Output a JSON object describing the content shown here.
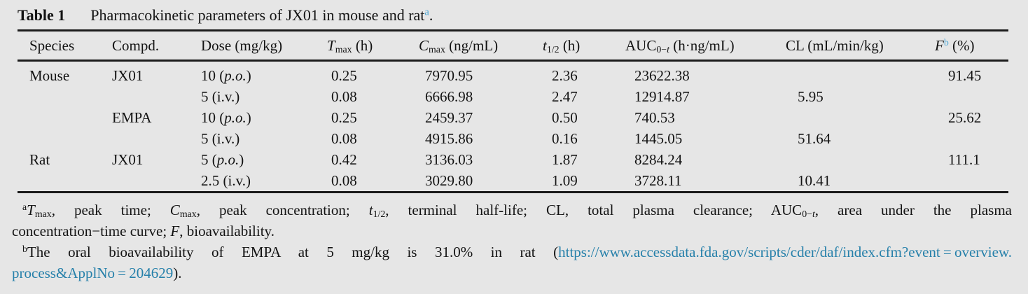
{
  "colors": {
    "background": "#e6e6e6",
    "text": "#131313",
    "rule": "#1b1b1b",
    "superscript_accent": "#4fa8d5",
    "link": "#2680aa"
  },
  "caption": {
    "label": "Table 1",
    "parts": [
      {
        "t": "Pharmacokinetic parameters of JX01 in mouse and rat"
      },
      {
        "t": "a",
        "sup": true,
        "accent": true
      },
      {
        "t": "."
      }
    ]
  },
  "columns": [
    {
      "key": "species",
      "parts": [
        {
          "t": "Species"
        }
      ]
    },
    {
      "key": "compound",
      "parts": [
        {
          "t": "Compd."
        }
      ]
    },
    {
      "key": "dose",
      "parts": [
        {
          "t": "Dose (mg/kg)"
        }
      ]
    },
    {
      "key": "tmax",
      "parts": [
        {
          "t": "T",
          "i": true
        },
        {
          "t": "max",
          "sub": true
        },
        {
          "t": " (h)"
        }
      ]
    },
    {
      "key": "cmax",
      "parts": [
        {
          "t": "C",
          "i": true
        },
        {
          "t": "max",
          "sub": true
        },
        {
          "t": " (ng/mL)"
        }
      ]
    },
    {
      "key": "thalf",
      "parts": [
        {
          "t": "t",
          "i": true
        },
        {
          "t": "1/2",
          "sub": true
        },
        {
          "t": " (h)"
        }
      ]
    },
    {
      "key": "auc",
      "parts": [
        {
          "t": "AUC"
        },
        {
          "t": "0−",
          "sub": true
        },
        {
          "t": "t",
          "sub": true,
          "i": true
        },
        {
          "t": " (h·ng/mL)"
        }
      ]
    },
    {
      "key": "cl",
      "parts": [
        {
          "t": "CL (mL/min/kg)"
        }
      ]
    },
    {
      "key": "f",
      "parts": [
        {
          "t": "F",
          "i": true
        },
        {
          "t": "b",
          "sup": true,
          "accent": true
        },
        {
          "t": " (%)"
        }
      ]
    }
  ],
  "rows": [
    {
      "cells": [
        [
          {
            "t": "Mouse"
          }
        ],
        [
          {
            "t": "JX01"
          }
        ],
        [
          {
            "t": "10 ("
          },
          {
            "t": "p.o.",
            "i": true
          },
          {
            "t": ")"
          }
        ],
        [
          {
            "t": "0.25"
          }
        ],
        [
          {
            "t": "7970.95"
          }
        ],
        [
          {
            "t": "2.36"
          }
        ],
        [
          {
            "t": "23622.38"
          }
        ],
        [],
        [
          {
            "t": "91.45"
          }
        ]
      ]
    },
    {
      "cells": [
        [],
        [],
        [
          {
            "t": "5 (i.v.)"
          }
        ],
        [
          {
            "t": "0.08"
          }
        ],
        [
          {
            "t": "6666.98"
          }
        ],
        [
          {
            "t": "2.47"
          }
        ],
        [
          {
            "t": "12914.87"
          }
        ],
        [
          {
            "t": "5.95"
          }
        ],
        []
      ]
    },
    {
      "cells": [
        [],
        [
          {
            "t": "EMPA"
          }
        ],
        [
          {
            "t": "10 ("
          },
          {
            "t": "p.o.",
            "i": true
          },
          {
            "t": ")"
          }
        ],
        [
          {
            "t": "0.25"
          }
        ],
        [
          {
            "t": "2459.37"
          }
        ],
        [
          {
            "t": "0.50"
          }
        ],
        [
          {
            "t": "740.53"
          }
        ],
        [],
        [
          {
            "t": "25.62"
          }
        ]
      ]
    },
    {
      "cells": [
        [],
        [],
        [
          {
            "t": "5 (i.v.)"
          }
        ],
        [
          {
            "t": "0.08"
          }
        ],
        [
          {
            "t": "4915.86"
          }
        ],
        [
          {
            "t": "0.16"
          }
        ],
        [
          {
            "t": "1445.05"
          }
        ],
        [
          {
            "t": "51.64"
          }
        ],
        []
      ]
    },
    {
      "cells": [
        [
          {
            "t": "Rat"
          }
        ],
        [
          {
            "t": "JX01"
          }
        ],
        [
          {
            "t": "5 ("
          },
          {
            "t": "p.o.",
            "i": true
          },
          {
            "t": ")"
          }
        ],
        [
          {
            "t": "0.42"
          }
        ],
        [
          {
            "t": "3136.03"
          }
        ],
        [
          {
            "t": "1.87"
          }
        ],
        [
          {
            "t": "8284.24"
          }
        ],
        [],
        [
          {
            "t": "111.1"
          }
        ]
      ]
    },
    {
      "cells": [
        [],
        [],
        [
          {
            "t": "2.5 (i.v.)"
          }
        ],
        [
          {
            "t": "0.08"
          }
        ],
        [
          {
            "t": "3029.80"
          }
        ],
        [
          {
            "t": "1.09"
          }
        ],
        [
          {
            "t": "3728.11"
          }
        ],
        [
          {
            "t": "10.41"
          }
        ],
        []
      ]
    }
  ],
  "footnotes": [
    {
      "id": "a",
      "lines": [
        [
          {
            "t": "a",
            "sup": true
          },
          {
            "t": "T",
            "i": true
          },
          {
            "t": "max",
            "sub": true
          },
          {
            "t": ", peak time; "
          },
          {
            "t": "C",
            "i": true
          },
          {
            "t": "max",
            "sub": true
          },
          {
            "t": ", peak concentration; "
          },
          {
            "t": "t",
            "i": true
          },
          {
            "t": "1/2",
            "sub": true
          },
          {
            "t": ", terminal half-life; CL, total plasma clearance; AUC"
          },
          {
            "t": "0−",
            "sub": true
          },
          {
            "t": "t",
            "sub": true,
            "i": true
          },
          {
            "t": ", area under the plasma"
          }
        ],
        [
          {
            "t": "concentration−time curve; "
          },
          {
            "t": "F",
            "i": true
          },
          {
            "t": ", bioavailability."
          }
        ]
      ]
    },
    {
      "id": "b",
      "lines": [
        [
          {
            "t": "b",
            "sup": true
          },
          {
            "t": "The oral bioavailability of EMPA at 5 mg/kg is 31.0% in rat ("
          },
          {
            "t": "https://www.accessdata.fda.gov/scripts/cder/daf/index.cfm?event = overview.",
            "link": true
          }
        ],
        [
          {
            "t": "process&ApplNo = 204629",
            "link": true
          },
          {
            "t": ")."
          }
        ]
      ]
    }
  ],
  "link": {
    "href_text": "https://www.accessdata.fda.gov/scripts/cder/daf/index.cfm?event=overview.process&ApplNo=204629"
  }
}
